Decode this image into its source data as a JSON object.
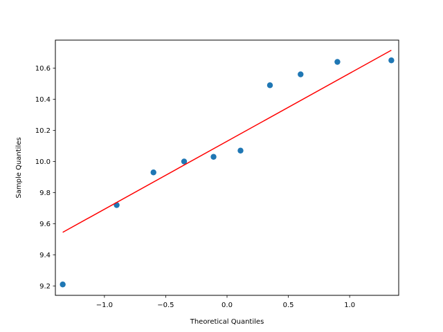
{
  "chart_data": {
    "type": "scatter",
    "title": "",
    "xlabel": "Theoretical Quantiles",
    "ylabel": "Sample Quantiles",
    "xlim": [
      -1.4,
      1.4
    ],
    "ylim": [
      9.14,
      10.78
    ],
    "xticks": [
      -1.0,
      -0.5,
      0.0,
      0.5,
      1.0
    ],
    "xtick_labels": [
      "−1.0",
      "−0.5",
      "0.0",
      "0.5",
      "1.0"
    ],
    "yticks": [
      9.2,
      9.4,
      9.6,
      9.8,
      10.0,
      10.2,
      10.4,
      10.6
    ],
    "ytick_labels": [
      "9.2",
      "9.4",
      "9.6",
      "9.8",
      "10.0",
      "10.2",
      "10.4",
      "10.6"
    ],
    "grid": false,
    "series": [
      {
        "kind": "points",
        "color": "#1f77b4",
        "x": [
          -1.34,
          -0.9,
          -0.6,
          -0.35,
          -0.11,
          0.11,
          0.35,
          0.6,
          0.9,
          1.34
        ],
        "y": [
          9.21,
          9.72,
          9.93,
          10.0,
          10.03,
          10.07,
          10.49,
          10.56,
          10.64,
          10.65
        ]
      },
      {
        "kind": "line",
        "color": "#ff0000",
        "x": [
          -1.34,
          1.34
        ],
        "y": [
          9.545,
          10.715
        ]
      }
    ]
  }
}
